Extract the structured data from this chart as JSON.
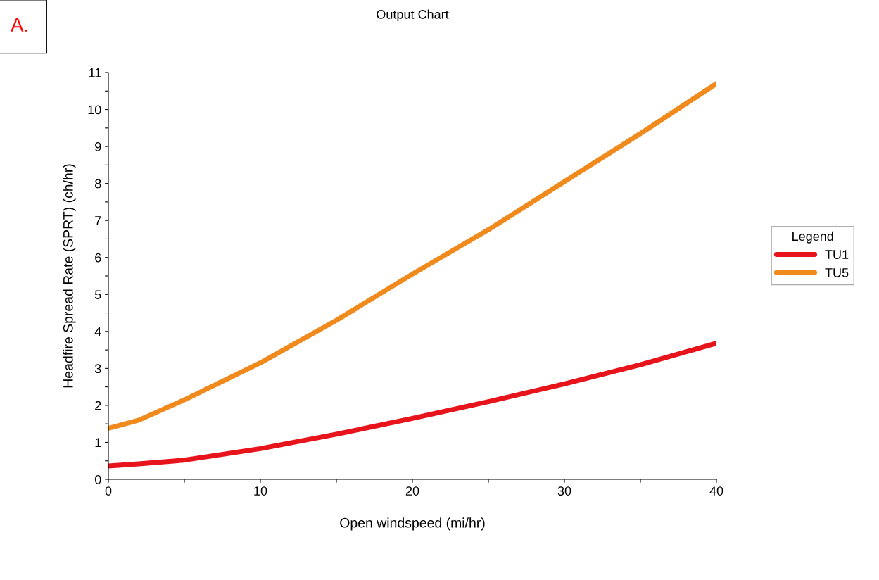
{
  "chart_data": {
    "type": "line",
    "title": "Output Chart",
    "xlabel": "Open windspeed (mi/hr)",
    "ylabel": "Headfire Spread Rate (SPRT) (ch/hr)",
    "legend_title": "Legend",
    "legend": "right",
    "grid": false,
    "marker": "none",
    "line_style": "solid",
    "annotations": [
      "A."
    ],
    "xlim": [
      0,
      40
    ],
    "ylim": [
      0,
      11
    ],
    "xticks": [
      0,
      {
        "value": 5,
        "label": null
      },
      10,
      {
        "value": 15,
        "label": null
      },
      20,
      {
        "value": 25,
        "label": null
      },
      30,
      {
        "value": 35,
        "label": null
      },
      40
    ],
    "yticks": [
      0,
      {
        "value": 0.5,
        "label": null
      },
      1,
      {
        "value": 1.5,
        "label": null
      },
      2,
      {
        "value": 2.5,
        "label": null
      },
      3,
      {
        "value": 3.5,
        "label": null
      },
      4,
      {
        "value": 4.5,
        "label": null
      },
      5,
      {
        "value": 5.5,
        "label": null
      },
      6,
      {
        "value": 6.5,
        "label": null
      },
      7,
      {
        "value": 7.5,
        "label": null
      },
      8,
      {
        "value": 8.5,
        "label": null
      },
      9,
      {
        "value": 9.5,
        "label": null
      },
      10,
      {
        "value": 10.5,
        "label": null
      },
      11
    ],
    "x": [
      0,
      2,
      5,
      10,
      15,
      20,
      25,
      30,
      35,
      40
    ],
    "series": [
      {
        "name": "TU1",
        "color": "#e8141b",
        "values": [
          0.36,
          0.42,
          0.52,
          0.83,
          1.22,
          1.65,
          2.1,
          2.58,
          3.1,
          3.68
        ]
      },
      {
        "name": "TU5",
        "color": "#f08a1c",
        "values": [
          1.38,
          1.6,
          2.15,
          3.15,
          4.3,
          5.55,
          6.75,
          8.05,
          9.35,
          10.7
        ]
      }
    ]
  }
}
